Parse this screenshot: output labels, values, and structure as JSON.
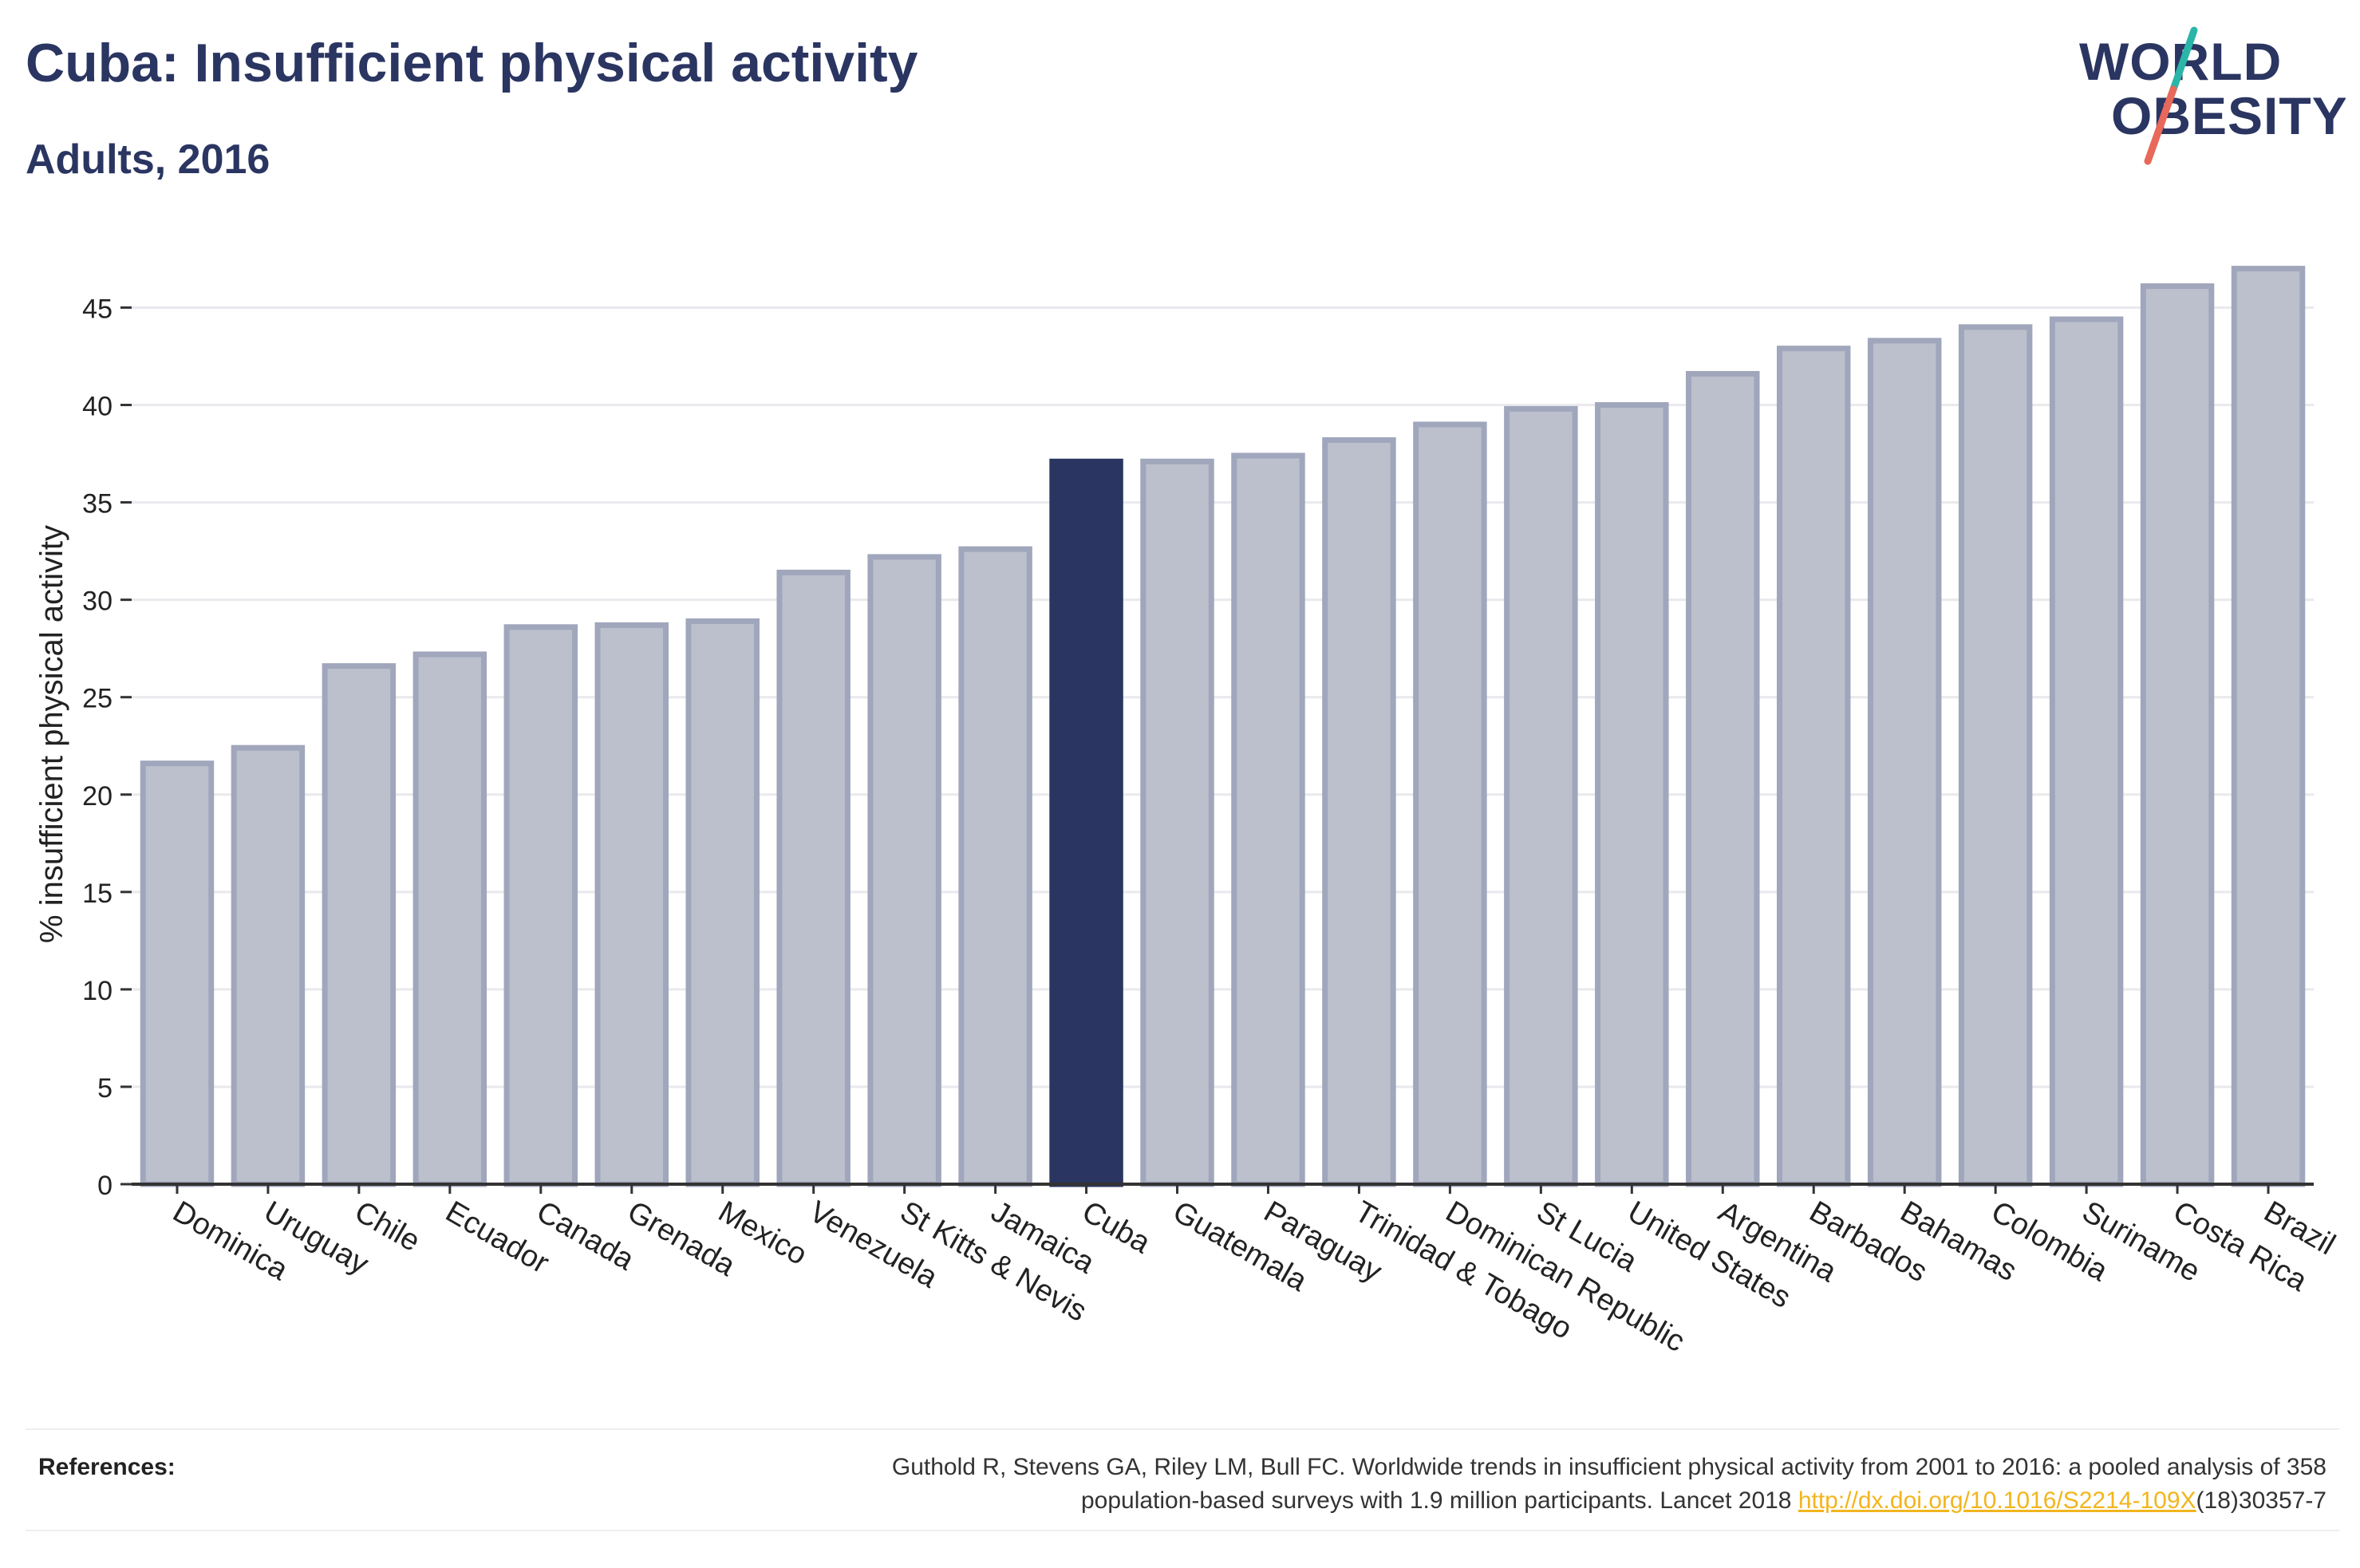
{
  "title": "Cuba: Insufficient physical activity",
  "subtitle": "Adults, 2016",
  "logo": {
    "line1": "WORLD",
    "line2": "OBESITY",
    "colors": {
      "text": "#2a3561",
      "slash_top": "#2bb5a8",
      "slash_bottom": "#e8685a"
    }
  },
  "colors": {
    "highlight": "#2a3561",
    "bar_fill": "#bcc0cd",
    "bar_stroke": "#a0a6bb",
    "axis": "#333333",
    "grid": "#e9e9ee",
    "link": "#f2b51d"
  },
  "chart_data": {
    "type": "bar",
    "ylabel": "% insufficient physical activity",
    "xlabel": "",
    "ylim": [
      0,
      48.5
    ],
    "yticks": [
      0,
      5,
      10,
      15,
      20,
      25,
      30,
      35,
      40,
      45
    ],
    "grid": true,
    "highlight": "Cuba",
    "categories": [
      "Dominica",
      "Uruguay",
      "Chile",
      "Ecuador",
      "Canada",
      "Grenada",
      "Mexico",
      "Venezuela",
      "St Kitts & Nevis",
      "Jamaica",
      "Cuba",
      "Guatemala",
      "Paraguay",
      "Trinidad & Tobago",
      "Dominican Republic",
      "St Lucia",
      "United States",
      "Argentina",
      "Barbados",
      "Bahamas",
      "Colombia",
      "Suriname",
      "Costa Rica",
      "Brazil"
    ],
    "values": [
      21.6,
      22.4,
      26.6,
      27.2,
      28.6,
      28.7,
      28.9,
      31.4,
      32.2,
      32.6,
      37.1,
      37.1,
      37.4,
      38.2,
      39.0,
      39.8,
      40.0,
      41.6,
      42.9,
      43.3,
      44.0,
      44.4,
      46.1,
      47.0
    ]
  },
  "references": {
    "label": "References:",
    "line1": "Guthold R, Stevens GA, Riley LM, Bull FC. Worldwide trends in insufficient physical activity from 2001 to 2016: a pooled analysis of 358",
    "line2_prefix": "population-based surveys with 1.9 million participants. Lancet 2018 ",
    "link": "http://dx.doi.org/10.1016/S2214-109X",
    "line2_suffix": "(18)30357-7"
  }
}
